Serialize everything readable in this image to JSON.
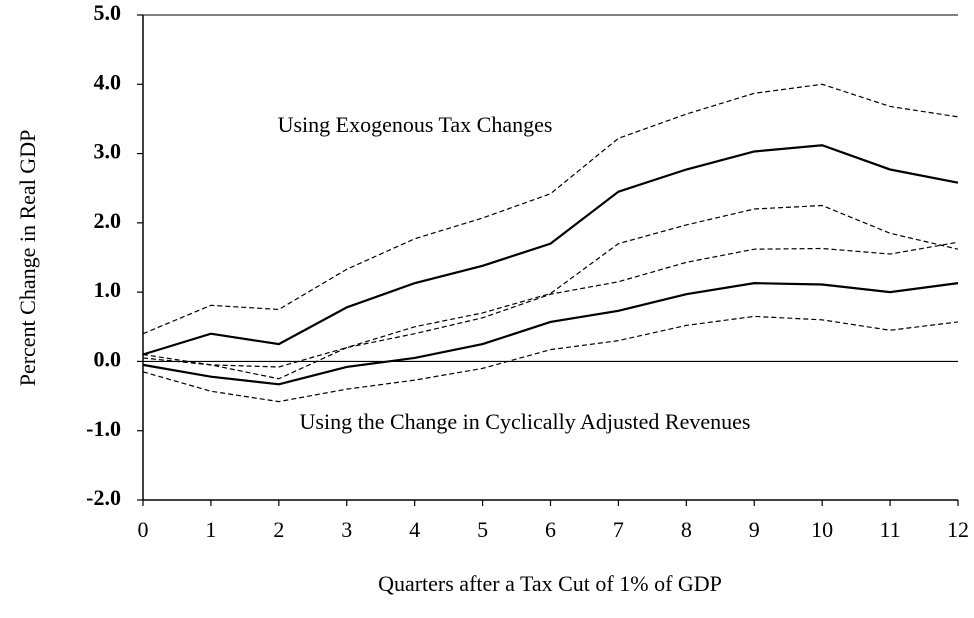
{
  "chart_data": {
    "type": "line",
    "x_label": "Quarters after a Tax Cut of 1% of GDP",
    "y_label": "Percent Change in Real GDP",
    "annotations": [
      "Using Exogenous Tax Changes",
      "Using the Change in Cyclically Adjusted Revenues"
    ],
    "x": [
      0,
      1,
      2,
      3,
      4,
      5,
      6,
      7,
      8,
      9,
      10,
      11,
      12
    ],
    "xlim": [
      0,
      12
    ],
    "xticks": [
      0,
      1,
      2,
      3,
      4,
      5,
      6,
      7,
      8,
      9,
      10,
      11,
      12
    ],
    "ylim": [
      -2,
      5
    ],
    "yticks": [
      {
        "value": -2,
        "label": "-2.0"
      },
      {
        "value": -1,
        "label": "-1.0"
      },
      {
        "value": 0,
        "label": "0.0"
      },
      {
        "value": 1,
        "label": "1.0"
      },
      {
        "value": 2,
        "label": "2.0"
      },
      {
        "value": 3,
        "label": "3.0"
      },
      {
        "value": 4,
        "label": "4.0"
      },
      {
        "value": 5,
        "label": "5.0"
      }
    ],
    "series": [
      {
        "color": "#000000",
        "dashed": false,
        "values": [
          0.1,
          0.4,
          0.25,
          0.78,
          1.13,
          1.38,
          1.7,
          2.45,
          2.77,
          3.03,
          3.12,
          2.77,
          2.58
        ]
      },
      {
        "color": "#000000",
        "dashed": true,
        "values": [
          0.4,
          0.81,
          0.75,
          1.33,
          1.77,
          2.07,
          2.42,
          3.22,
          3.57,
          3.87,
          4.0,
          3.68,
          3.53
        ]
      },
      {
        "color": "#000000",
        "dashed": true,
        "values": [
          0.1,
          -0.05,
          -0.25,
          0.2,
          0.5,
          0.7,
          0.98,
          1.7,
          1.97,
          2.2,
          2.25,
          1.85,
          1.62
        ]
      },
      {
        "color": "#000000",
        "dashed": false,
        "values": [
          -0.05,
          -0.22,
          -0.33,
          -0.08,
          0.05,
          0.25,
          0.57,
          0.73,
          0.97,
          1.13,
          1.11,
          1.0,
          1.13
        ]
      },
      {
        "color": "#000000",
        "dashed": true,
        "values": [
          0.05,
          -0.05,
          -0.08,
          0.2,
          0.4,
          0.63,
          0.97,
          1.15,
          1.43,
          1.62,
          1.63,
          1.55,
          1.72
        ]
      },
      {
        "color": "#000000",
        "dashed": true,
        "values": [
          -0.15,
          -0.43,
          -0.58,
          -0.4,
          -0.27,
          -0.1,
          0.17,
          0.3,
          0.52,
          0.65,
          0.6,
          0.45,
          0.57
        ]
      }
    ]
  }
}
